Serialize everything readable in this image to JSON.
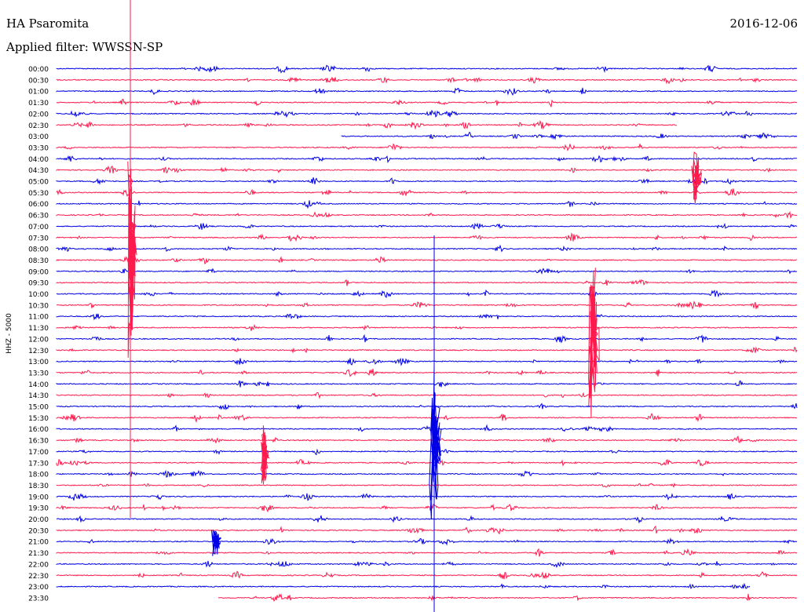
{
  "header": {
    "station": "HA Psaromita",
    "filter_label": "Applied filter: WWSSN-SP",
    "date": "2016-12-06"
  },
  "colors": {
    "even": "#0000e6",
    "odd": "#ff1a4d"
  },
  "chart_data": {
    "type": "line",
    "ylabel": "HHZ - 5000",
    "trace_labels": [
      "00:00",
      "00:30",
      "01:00",
      "01:30",
      "02:00",
      "02:30",
      "03:00",
      "03:30",
      "04:00",
      "04:30",
      "05:00",
      "05:30",
      "06:00",
      "06:30",
      "07:00",
      "07:30",
      "08:00",
      "08:30",
      "09:00",
      "09:30",
      "10:00",
      "10:30",
      "11:00",
      "11:30",
      "12:00",
      "12:30",
      "13:00",
      "13:30",
      "14:00",
      "14:30",
      "15:00",
      "15:30",
      "16:00",
      "16:30",
      "17:00",
      "17:30",
      "18:00",
      "18:30",
      "19:00",
      "19:30",
      "20:00",
      "20:30",
      "21:00",
      "21:30",
      "22:00",
      "22:30",
      "23:00",
      "23:30"
    ],
    "grid": false
  }
}
